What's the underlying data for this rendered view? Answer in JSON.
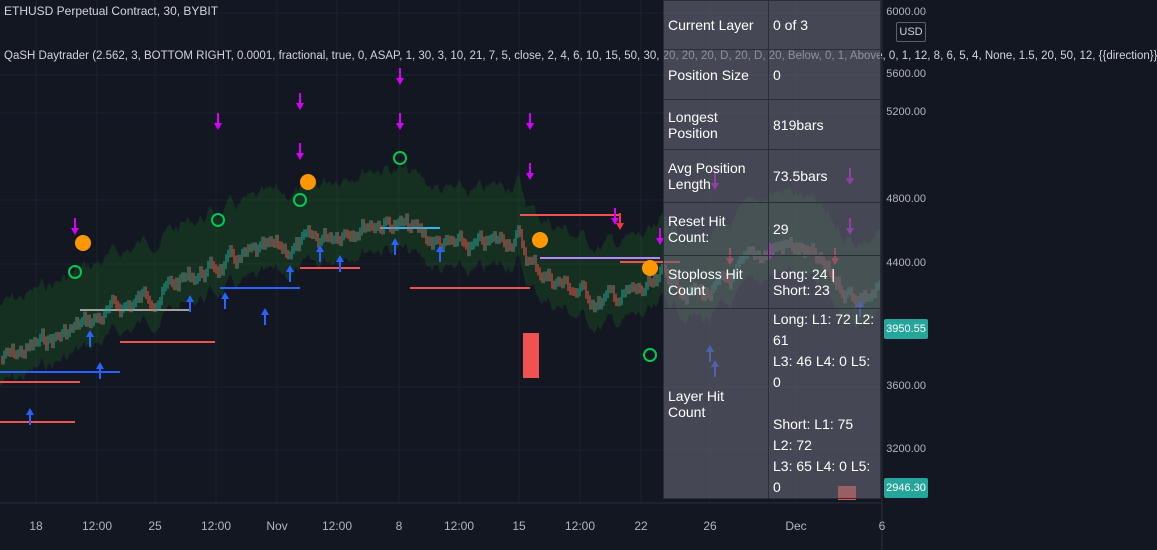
{
  "header": {
    "title": "ETHUSD Perpetual Contract, 30, BYBIT",
    "indicator": "QaSH Daytrader (2.562, 3, BOTTOM RIGHT, 0.0001, fractional, true, 0, ASAP, 1, 30, 3, 10, 21, 7, 5, close, 2, 4, 6, 10, 15, 50, 30, 20, 20, 20, D, 20, D, 20, Below, 0, 1, Above, 0, 1, 12, 8, 6, 5, 4, None, 1.5, 20, 50, 12, {{direction}}"
  },
  "price_axis": {
    "currency": "USD",
    "ticks": [
      "6000.00",
      "5600.00",
      "5200.00",
      "4800.00",
      "4400.00",
      "3600.00",
      "3200.00"
    ],
    "last_price": "3950.55",
    "low_marker": "2946.30"
  },
  "time_axis": {
    "ticks": [
      "18",
      "12:00",
      "25",
      "12:00",
      "Nov",
      "12:00",
      "8",
      "12:00",
      "15",
      "12:00",
      "22",
      "26",
      "Dec",
      "6"
    ]
  },
  "stats_table": {
    "rows": [
      {
        "key": "Current Layer",
        "value": "0 of 3"
      },
      {
        "key": "Position Size",
        "value": "0"
      },
      {
        "key": "Longest Position",
        "value": "819bars"
      },
      {
        "key": "Avg Position Length",
        "value": "73.5bars"
      },
      {
        "key": "Reset Hit Count:",
        "value": "29"
      },
      {
        "key": "Stoploss Hit Count",
        "value": "Long: 24  | Short: 23"
      },
      {
        "key": "Layer Hit Count",
        "value": "Long:  L1: 72  L2: 61\nL3: 46  L4: 0 L5: 0\n\nShort:  L1: 75  L2: 72\nL3: 65  L4: 0 L5: 0"
      }
    ]
  },
  "colors": {
    "background": "#131722",
    "grid": "#1e222d",
    "candle_up": "#26a69a",
    "candle_down": "#ef5350",
    "long_arrow": "#2962ff",
    "short_arrow": "#f23645",
    "signal_magenta": "#d500f9",
    "cloud": "#1b5e20",
    "orange": "#ff9800"
  }
}
